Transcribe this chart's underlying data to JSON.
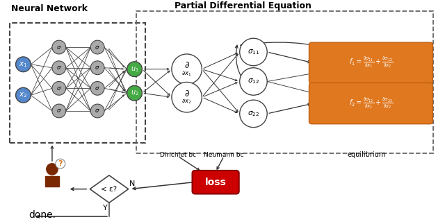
{
  "title_nn": "Neural Network",
  "title_pde": "Partial Differential Equation",
  "bg_color": "#ffffff",
  "node_color_input": "#5588cc",
  "node_color_hidden": "#aaaaaa",
  "node_color_output_nn": "#44aa44",
  "node_stroke": "#444444",
  "orange_box_color": "#e07820",
  "loss_box_color": "#cc0000",
  "person_color": "#7a2800",
  "dirichlet_label": "Dirichlet bc",
  "neumann_label": "Neumann bc",
  "equilibrium_label": "equilibrium",
  "loss_label": "loss",
  "done_label": "done.",
  "epsilon_label": "< ε?",
  "n_label": "N",
  "y_label": "Y"
}
